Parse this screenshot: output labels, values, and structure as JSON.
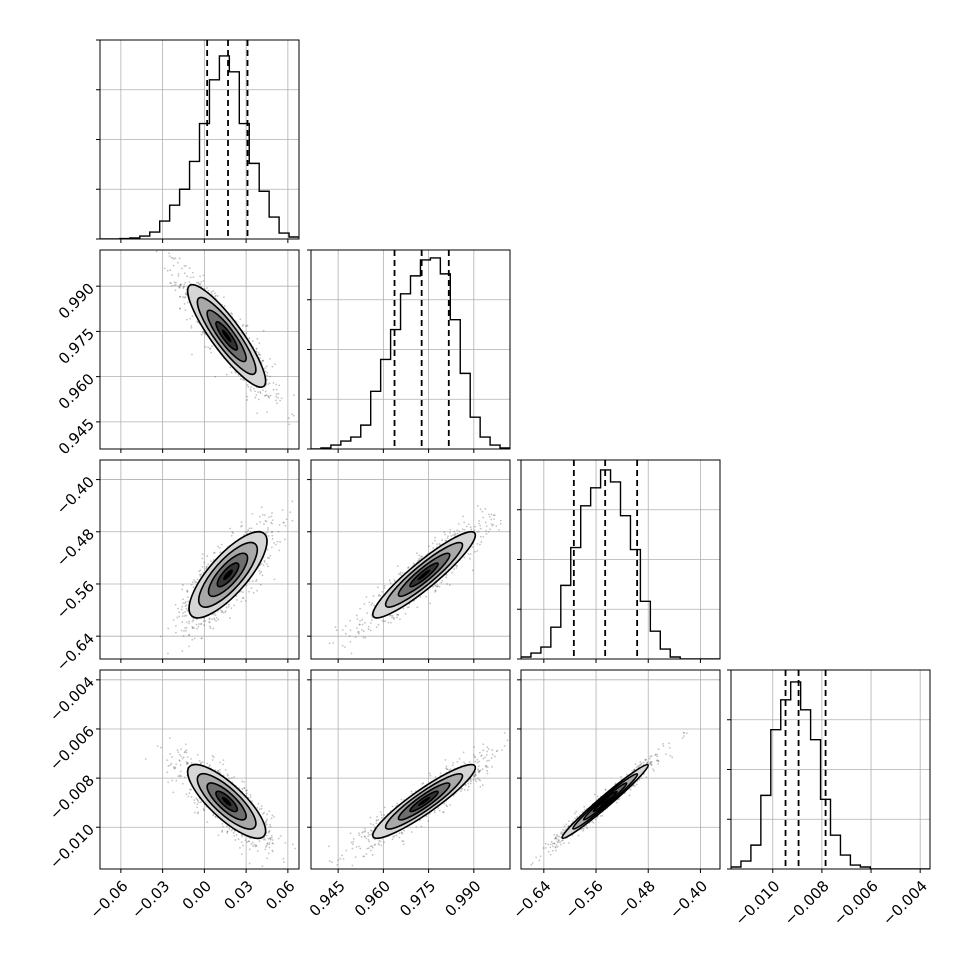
{
  "chart_data": {
    "type": "corner",
    "description_type": "histogram + 2d density",
    "grid": true,
    "parameters": [
      {
        "index": 0,
        "range": [
          -0.075,
          0.068
        ],
        "ticks": [
          -0.06,
          -0.03,
          0.0,
          0.03,
          0.06
        ],
        "tick_labels": [
          "−0.06",
          "−0.03",
          "0.00",
          "0.03",
          "0.06"
        ],
        "quantiles": [
          0.002,
          0.017,
          0.031
        ],
        "hist": [
          [
            -0.07,
            0.0
          ],
          [
            -0.062,
            0.0
          ],
          [
            -0.055,
            0.002
          ],
          [
            -0.047,
            0.005
          ],
          [
            -0.04,
            0.015
          ],
          [
            -0.033,
            0.035
          ],
          [
            -0.026,
            0.09
          ],
          [
            -0.019,
            0.17
          ],
          [
            -0.012,
            0.25
          ],
          [
            -0.005,
            0.39
          ],
          [
            0.002,
            0.58
          ],
          [
            0.009,
            0.8
          ],
          [
            0.016,
            0.92
          ],
          [
            0.023,
            0.84
          ],
          [
            0.03,
            0.58
          ],
          [
            0.037,
            0.38
          ],
          [
            0.044,
            0.24
          ],
          [
            0.051,
            0.11
          ],
          [
            0.058,
            0.03
          ],
          [
            0.065,
            0.01
          ]
        ]
      },
      {
        "index": 1,
        "range": [
          0.936,
          1.002
        ],
        "ticks": [
          0.945,
          0.96,
          0.975,
          0.99
        ],
        "tick_labels": [
          "0.945",
          "0.960",
          "0.975",
          "0.990"
        ],
        "quantiles": [
          0.9637,
          0.9727,
          0.9817
        ],
        "hist": [
          [
            0.938,
            0.0
          ],
          [
            0.941,
            0.005
          ],
          [
            0.944,
            0.02
          ],
          [
            0.947,
            0.04
          ],
          [
            0.95,
            0.06
          ],
          [
            0.953,
            0.12
          ],
          [
            0.956,
            0.29
          ],
          [
            0.959,
            0.45
          ],
          [
            0.962,
            0.6
          ],
          [
            0.965,
            0.78
          ],
          [
            0.968,
            0.87
          ],
          [
            0.971,
            0.95
          ],
          [
            0.974,
            0.96
          ],
          [
            0.977,
            0.88
          ],
          [
            0.98,
            0.65
          ],
          [
            0.983,
            0.38
          ],
          [
            0.986,
            0.16
          ],
          [
            0.989,
            0.06
          ],
          [
            0.992,
            0.02
          ],
          [
            0.995,
            0.005
          ]
        ]
      },
      {
        "index": 2,
        "range": [
          -0.675,
          -0.37
        ],
        "ticks": [
          -0.64,
          -0.56,
          -0.48,
          -0.4
        ],
        "tick_labels": [
          "−0.64",
          "−0.56",
          "−0.48",
          "−0.40"
        ],
        "quantiles": [
          -0.594,
          -0.546,
          -0.497
        ],
        "hist": [
          [
            -0.667,
            0.01
          ],
          [
            -0.652,
            0.03
          ],
          [
            -0.637,
            0.06
          ],
          [
            -0.622,
            0.16
          ],
          [
            -0.607,
            0.37
          ],
          [
            -0.592,
            0.56
          ],
          [
            -0.577,
            0.77
          ],
          [
            -0.562,
            0.86
          ],
          [
            -0.547,
            0.95
          ],
          [
            -0.532,
            0.89
          ],
          [
            -0.517,
            0.72
          ],
          [
            -0.502,
            0.55
          ],
          [
            -0.487,
            0.29
          ],
          [
            -0.472,
            0.14
          ],
          [
            -0.457,
            0.05
          ],
          [
            -0.442,
            0.01
          ],
          [
            -0.427,
            0.0
          ],
          [
            -0.412,
            0.0
          ],
          [
            -0.397,
            0.0
          ],
          [
            -0.382,
            0.0
          ]
        ]
      },
      {
        "index": 3,
        "range": [
          -0.0117,
          -0.0036
        ],
        "ticks": [
          -0.01,
          -0.008,
          -0.006,
          -0.004
        ],
        "tick_labels": [
          "−0.010",
          "−0.008",
          "−0.006",
          "−0.004"
        ],
        "quantiles": [
          -0.00948,
          -0.00895,
          -0.00785
        ],
        "hist": [
          [
            -0.0112,
            0.01
          ],
          [
            -0.0108,
            0.04
          ],
          [
            -0.0104,
            0.12
          ],
          [
            -0.01,
            0.37
          ],
          [
            -0.0096,
            0.7
          ],
          [
            -0.0092,
            0.85
          ],
          [
            -0.0088,
            0.94
          ],
          [
            -0.0084,
            0.8
          ],
          [
            -0.008,
            0.65
          ],
          [
            -0.0076,
            0.35
          ],
          [
            -0.0072,
            0.17
          ],
          [
            -0.0068,
            0.07
          ],
          [
            -0.0064,
            0.02
          ],
          [
            -0.006,
            0.01
          ],
          [
            -0.0056,
            0.0
          ],
          [
            -0.0052,
            0.0
          ],
          [
            -0.0048,
            0.0
          ],
          [
            -0.0044,
            0.0
          ],
          [
            -0.004,
            0.0
          ],
          [
            -0.0038,
            0.0
          ]
        ]
      }
    ],
    "pairs": [
      {
        "row": 1,
        "col": 0,
        "center": [
          0.016,
          0.9735
        ],
        "sd": [
          0.014,
          0.0085
        ],
        "corr": -0.88
      },
      {
        "row": 2,
        "col": 0,
        "center": [
          0.017,
          -0.546
        ],
        "sd": [
          0.014,
          0.033
        ],
        "corr": 0.78
      },
      {
        "row": 2,
        "col": 1,
        "center": [
          0.9735,
          -0.546
        ],
        "sd": [
          0.0085,
          0.033
        ],
        "corr": 0.92
      },
      {
        "row": 3,
        "col": 0,
        "center": [
          0.016,
          -0.00895
        ],
        "sd": [
          0.014,
          0.00075
        ],
        "corr": -0.8
      },
      {
        "row": 3,
        "col": 1,
        "center": [
          0.9735,
          -0.00895
        ],
        "sd": [
          0.0085,
          0.00075
        ],
        "corr": 0.92
      },
      {
        "row": 3,
        "col": 2,
        "center": [
          -0.546,
          -0.00895
        ],
        "sd": [
          0.033,
          0.00075
        ],
        "corr": 0.98
      }
    ]
  }
}
